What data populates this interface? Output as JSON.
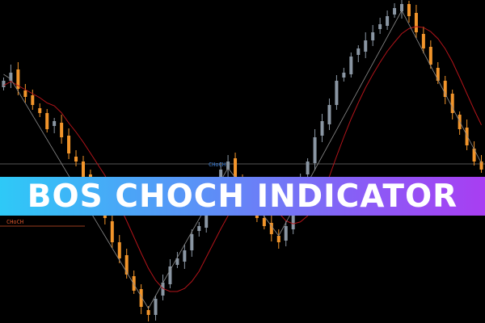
{
  "banner": {
    "title": "BOS CHOCH INDICATOR"
  },
  "labels": {
    "choch_upper": "CHoCH",
    "choch_lower": "CHoCH"
  },
  "colors": {
    "background": "#000000",
    "bull_candle": "#8a96a3",
    "bear_candle": "#f2952b",
    "moving_average": "#b3141a",
    "zigzag": "#8c8c8c",
    "choch_upper": "#3d7fd6",
    "choch_lower": "#d9552b",
    "banner_start": "#2ec9f7",
    "banner_end": "#a83ef2"
  },
  "chart_data": {
    "type": "candlestick",
    "closes": [
      300,
      310,
      290,
      280,
      270,
      260,
      240,
      250,
      230,
      210,
      200,
      180,
      160,
      150,
      130,
      100,
      80,
      60,
      40,
      20,
      10,
      30,
      50,
      70,
      80,
      90,
      110,
      120,
      150,
      170,
      190,
      200,
      180,
      160,
      140,
      130,
      120,
      110,
      100,
      120,
      150,
      180,
      200,
      230,
      250,
      270,
      300,
      310,
      330,
      340,
      350,
      360,
      370,
      380,
      390,
      395,
      380,
      360,
      340,
      320,
      300,
      280,
      260,
      240,
      220,
      200,
      190
    ],
    "zigzag_pivots": [
      0,
      1,
      20,
      31,
      38,
      55,
      66
    ],
    "levels": [
      {
        "label": "CHoCH",
        "price": 197
      },
      {
        "label": "CHoCH",
        "price": 120
      }
    ],
    "ylim": [
      0,
      400
    ]
  }
}
